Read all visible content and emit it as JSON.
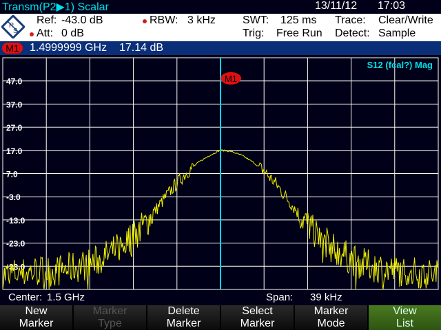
{
  "header": {
    "title": "Transm(P2▶1) Scalar",
    "date": "13/11/12",
    "time": "17:03"
  },
  "settings": {
    "ref_label": "Ref:",
    "ref_value": "-43.0 dB",
    "att_label": "Att:",
    "att_value": "0 dB",
    "rbw_label": "RBW:",
    "rbw_value": "3 kHz",
    "swt_label": "SWT:",
    "swt_value": "125 ms",
    "trig_label": "Trig:",
    "trig_value": "Free Run",
    "trace_label": "Trace:",
    "trace_value": "Clear/Write",
    "detect_label": "Detect:",
    "detect_value": "Sample"
  },
  "marker": {
    "badge": "M1",
    "frequency": "1.4999999 GHz",
    "level": "17.14 dB"
  },
  "colors": {
    "trace": "#f0f000",
    "marker_line": "#00d8e8",
    "marker_badge": "#e01010",
    "accent": "#00e0e8"
  },
  "chart_data": {
    "type": "line",
    "trace_label": "S12 (fcal?) Mag",
    "ylim": [
      -43,
      57
    ],
    "y_ticks": [
      "47.0",
      "37.0",
      "27.0",
      "17.0",
      "7.0",
      "-3.0",
      "-13.0",
      "-23.0",
      "-33.0"
    ],
    "y_tick_values": [
      47,
      37,
      27,
      17,
      7,
      -3,
      -13,
      -23,
      -33
    ],
    "x_center_ghz": 1.5,
    "x_span_khz": 39,
    "grid": true,
    "trace_offsets_khz": [
      -19.5,
      -18.5,
      -17.6,
      -16.6,
      -15.6,
      -14.6,
      -13.7,
      -12.7,
      -11.7,
      -10.7,
      -9.75,
      -8.8,
      -7.8,
      -6.8,
      -5.85,
      -4.9,
      -3.9,
      -2.9,
      -1.95,
      -0.98,
      0,
      0.98,
      1.95,
      2.9,
      3.9,
      4.9,
      5.85,
      6.8,
      7.8,
      8.8,
      9.75,
      10.7,
      11.7,
      12.7,
      13.7,
      14.6,
      15.6,
      16.6,
      17.6,
      18.5,
      19.5
    ],
    "trace_db": [
      -37,
      -36,
      -36,
      -35,
      -35,
      -35,
      -34,
      -33,
      -32,
      -30,
      -27,
      -24,
      -20,
      -15,
      -9,
      -3,
      3,
      8,
      12,
      14.8,
      17.14,
      16.5,
      14.8,
      12,
      8,
      3,
      -3,
      -9,
      -15,
      -20,
      -24,
      -27,
      -30,
      -32,
      -33,
      -34,
      -35,
      -35,
      -36,
      -36,
      -37
    ],
    "marker_offset_khz": 0,
    "marker_label": "M1"
  },
  "footer": {
    "center_label": "Center:",
    "center_value": "1.5 GHz",
    "span_label": "Span:",
    "span_value": "39 kHz"
  },
  "softkeys": [
    {
      "line1": "New",
      "line2": "Marker"
    },
    {
      "line1": "Marker",
      "line2": "Type"
    },
    {
      "line1": "Delete",
      "line2": "Marker"
    },
    {
      "line1": "Select",
      "line2": "Marker"
    },
    {
      "line1": "Marker",
      "line2": "Mode"
    },
    {
      "line1": "View",
      "line2": "List"
    }
  ]
}
